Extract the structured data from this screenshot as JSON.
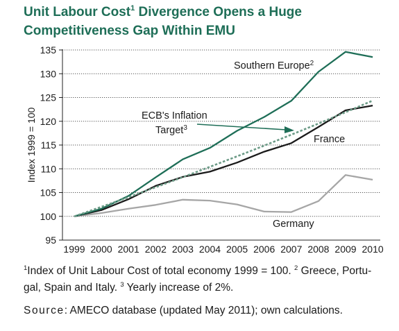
{
  "title": {
    "line1_main": "Unit Labour Cost",
    "line1_sup": "1",
    "line1_rest": " Divergence Opens a Huge",
    "line2": "Competitiveness Gap Within EMU"
  },
  "chart_data": {
    "type": "line",
    "ylabel": "Index 1999 = 100",
    "ylim": [
      95,
      135
    ],
    "yticks": [
      95,
      100,
      105,
      110,
      115,
      120,
      125,
      130,
      135
    ],
    "x": [
      "1999",
      "2000",
      "2001",
      "2002",
      "2003",
      "2004",
      "2005",
      "2006",
      "2007",
      "2008",
      "2009",
      "2010"
    ],
    "grid": "horizontal dotted",
    "series": [
      {
        "key": "southern",
        "name": "Southern Europe",
        "name_sup": "2",
        "color": "#1e6e57",
        "style": "solid",
        "values": [
          100,
          101.6,
          104.3,
          108.2,
          112.0,
          114.4,
          118.0,
          120.9,
          124.3,
          130.4,
          134.6,
          133.5
        ]
      },
      {
        "key": "inflation",
        "name": "ECB's Inflation",
        "name_line2": "Target",
        "name_sup": "3",
        "color": "#6b9a86",
        "style": "dashed",
        "values": [
          100,
          102.0,
          104.04,
          106.12,
          108.24,
          110.41,
          112.62,
          114.87,
          117.17,
          119.51,
          121.9,
          124.34
        ]
      },
      {
        "key": "france",
        "name": "France",
        "color": "#1a1a1a",
        "style": "solid",
        "values": [
          100,
          101.3,
          103.6,
          106.4,
          108.3,
          109.4,
          111.3,
          113.6,
          115.4,
          118.8,
          122.3,
          123.3
        ]
      },
      {
        "key": "germany",
        "name": "Germany",
        "color": "#a6a6a6",
        "style": "solid",
        "values": [
          100,
          100.7,
          101.6,
          102.4,
          103.5,
          103.3,
          102.5,
          101.0,
          100.9,
          103.2,
          108.7,
          107.7
        ]
      }
    ]
  },
  "footnote": {
    "line1_sup": "1",
    "line1_a": "Index of Unit Labour Cost of total economy 1999 = 100.  ",
    "line1_sup2": "2",
    "line1_b": " Greece, Portu-",
    "line2_a": "gal, Spain and Italy.  ",
    "line2_sup": "3",
    "line2_b": " Yearly increase of 2%."
  },
  "source": {
    "label": "Source",
    "text": ": AMECO database (updated May 2011); own calculations."
  }
}
